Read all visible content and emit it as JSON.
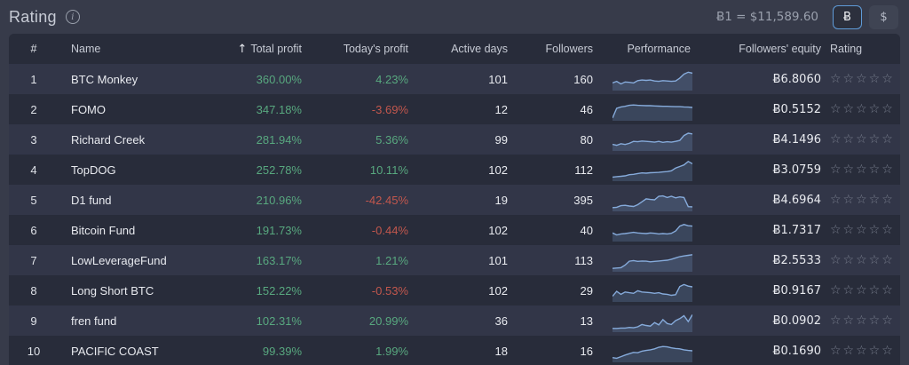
{
  "page": {
    "title": "Rating",
    "exchange_rate": "Ƀ1 = $11,589.60",
    "currency_toggle": {
      "btc_label": "Ƀ",
      "usd_label": "$",
      "selected": "btc"
    }
  },
  "colors": {
    "accent_blue": "#5f9bd8",
    "positive_green": "#58a87f",
    "negative_red": "#c2574d",
    "spark_line": "#86abdb",
    "spark_fill": "rgba(122,162,212,0.22)",
    "row_light": "#323648",
    "row_dark": "#282c3a"
  },
  "table": {
    "columns": [
      "#",
      "Name",
      "Total profit",
      "Today's profit",
      "Active days",
      "Followers",
      "Performance",
      "Followers' equity",
      "Rating"
    ],
    "sort_icon": "↑",
    "sorted_column": "Total profit",
    "star_empty": "☆",
    "stars_per_row": 5
  },
  "chart_data": {
    "type": "table",
    "note": "spark arrays are sparkline y-values normalized 0-100, left to right",
    "rows": [
      {
        "rank": "1",
        "name": "BTC Monkey",
        "total_profit": "360.00%",
        "today_profit": "4.23%",
        "today_positive": true,
        "active_days": "101",
        "followers": "160",
        "equity": "Ƀ6.8060",
        "stars": 0,
        "spark": [
          30,
          38,
          25,
          35,
          33,
          30,
          42,
          45,
          43,
          45,
          40,
          38,
          42,
          40,
          38,
          40,
          55,
          75,
          85,
          80
        ]
      },
      {
        "rank": "2",
        "name": "FOMO",
        "total_profit": "347.18%",
        "today_profit": "-3.69%",
        "today_positive": false,
        "active_days": "12",
        "followers": "46",
        "equity": "Ƀ0.5152",
        "stars": 0,
        "spark": [
          5,
          55,
          62,
          65,
          70,
          72,
          70,
          69,
          68,
          68,
          67,
          66,
          65,
          65,
          64,
          63,
          63,
          62,
          61,
          59
        ]
      },
      {
        "rank": "3",
        "name": "Richard Creek",
        "total_profit": "281.94%",
        "today_profit": "5.36%",
        "today_positive": true,
        "active_days": "99",
        "followers": "80",
        "equity": "Ƀ4.1496",
        "stars": 0,
        "spark": [
          25,
          20,
          28,
          24,
          30,
          40,
          38,
          42,
          40,
          38,
          36,
          40,
          35,
          38,
          36,
          40,
          45,
          70,
          82,
          78
        ]
      },
      {
        "rank": "4",
        "name": "TopDOG",
        "total_profit": "252.78%",
        "today_profit": "10.11%",
        "today_positive": true,
        "active_days": "102",
        "followers": "112",
        "equity": "Ƀ3.0759",
        "stars": 0,
        "spark": [
          12,
          14,
          16,
          18,
          24,
          26,
          30,
          33,
          32,
          34,
          35,
          36,
          38,
          40,
          44,
          58,
          66,
          74,
          92,
          80
        ]
      },
      {
        "rank": "5",
        "name": "D1 fund",
        "total_profit": "210.96%",
        "today_profit": "-42.45%",
        "today_positive": false,
        "active_days": "19",
        "followers": "395",
        "equity": "Ƀ4.6964",
        "stars": 0,
        "spark": [
          10,
          12,
          20,
          22,
          18,
          16,
          25,
          40,
          55,
          52,
          50,
          68,
          70,
          62,
          68,
          60,
          65,
          62,
          15,
          14
        ]
      },
      {
        "rank": "6",
        "name": "Bitcoin Fund",
        "total_profit": "191.73%",
        "today_profit": "-0.44%",
        "today_positive": false,
        "active_days": "102",
        "followers": "40",
        "equity": "Ƀ1.7317",
        "stars": 0,
        "spark": [
          35,
          25,
          30,
          32,
          35,
          38,
          35,
          33,
          32,
          35,
          33,
          30,
          32,
          30,
          33,
          45,
          70,
          78,
          72,
          70
        ]
      },
      {
        "rank": "7",
        "name": "LowLeverageFund",
        "total_profit": "163.17%",
        "today_profit": "1.21%",
        "today_positive": true,
        "active_days": "101",
        "followers": "113",
        "equity": "Ƀ2.5533",
        "stars": 0,
        "spark": [
          8,
          10,
          12,
          25,
          45,
          48,
          44,
          46,
          45,
          42,
          44,
          46,
          48,
          50,
          55,
          62,
          68,
          72,
          75,
          78
        ]
      },
      {
        "rank": "8",
        "name": "Long Short BTC",
        "total_profit": "152.22%",
        "today_profit": "-0.53%",
        "today_positive": false,
        "active_days": "102",
        "followers": "29",
        "equity": "Ƀ0.9167",
        "stars": 0,
        "spark": [
          20,
          45,
          30,
          42,
          38,
          35,
          48,
          42,
          40,
          38,
          35,
          38,
          32,
          30,
          25,
          28,
          70,
          80,
          72,
          68
        ]
      },
      {
        "rank": "9",
        "name": "fren fund",
        "total_profit": "102.31%",
        "today_profit": "20.99%",
        "today_positive": true,
        "active_days": "36",
        "followers": "13",
        "equity": "Ƀ0.0902",
        "stars": 0,
        "spark": [
          10,
          10,
          12,
          12,
          15,
          13,
          18,
          30,
          25,
          22,
          40,
          28,
          55,
          35,
          30,
          50,
          60,
          75,
          45,
          80
        ]
      },
      {
        "rank": "10",
        "name": "PACIFIC COAST",
        "total_profit": "99.39%",
        "today_profit": "1.99%",
        "today_positive": true,
        "active_days": "18",
        "followers": "16",
        "equity": "Ƀ0.1690",
        "stars": 0,
        "spark": [
          15,
          12,
          20,
          28,
          35,
          42,
          40,
          48,
          52,
          55,
          60,
          68,
          72,
          70,
          65,
          62,
          60,
          55,
          52,
          50
        ]
      }
    ]
  }
}
